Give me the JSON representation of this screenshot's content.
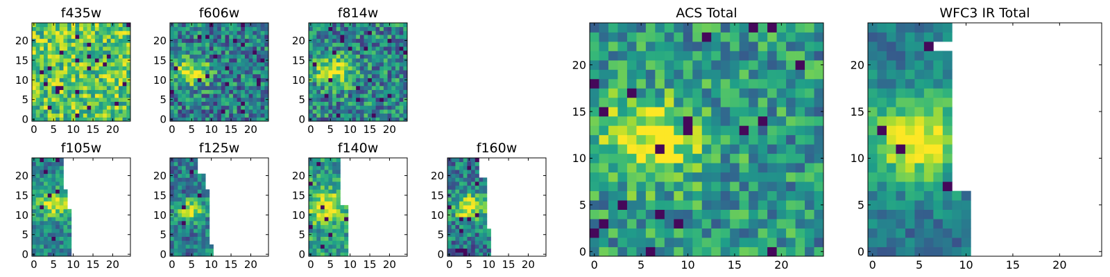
{
  "figure": {
    "background": "#ffffff",
    "colormap": "viridis",
    "colormap_stops": [
      "#440154",
      "#482878",
      "#3e4989",
      "#31688e",
      "#26828e",
      "#1f9e89",
      "#35b779",
      "#6ece58",
      "#b5de2b",
      "#fde725"
    ]
  },
  "chart_data": [
    {
      "type": "heatmap",
      "title": "f435w",
      "xlim": [
        -0.5,
        24.5
      ],
      "ylim": [
        -0.5,
        24.5
      ],
      "xticks": [
        0,
        5,
        10,
        15,
        20
      ],
      "yticks": [
        0,
        5,
        10,
        15,
        20
      ],
      "xticklabels": [
        "0",
        "5",
        "10",
        "15",
        "20"
      ],
      "yticklabels": [
        "0",
        "5",
        "10",
        "15",
        "20"
      ],
      "grid": false,
      "data_extent": [
        0,
        24
      ],
      "bright_spot": null,
      "mean_level": 0.72,
      "noise": 0.28,
      "seed": 11
    },
    {
      "type": "heatmap",
      "title": "f606w",
      "xlim": [
        -0.5,
        24.5
      ],
      "ylim": [
        -0.5,
        24.5
      ],
      "xticks": [
        0,
        5,
        10,
        15,
        20
      ],
      "yticks": [
        0,
        5,
        10,
        15,
        20
      ],
      "xticklabels": [
        "0",
        "5",
        "10",
        "15",
        "20"
      ],
      "yticklabels": [
        "0",
        "5",
        "10",
        "15",
        "20"
      ],
      "grid": false,
      "data_extent": [
        0,
        24
      ],
      "bright_spot": {
        "x": 5,
        "y": 12,
        "radius": 3.2,
        "peak": 0.98
      },
      "mean_level": 0.42,
      "noise": 0.3,
      "seed": 23
    },
    {
      "type": "heatmap",
      "title": "f814w",
      "xlim": [
        -0.5,
        24.5
      ],
      "ylim": [
        -0.5,
        24.5
      ],
      "xticks": [
        0,
        5,
        10,
        15,
        20
      ],
      "yticks": [
        0,
        5,
        10,
        15,
        20
      ],
      "xticklabels": [
        "0",
        "5",
        "10",
        "15",
        "20"
      ],
      "yticklabels": [
        "0",
        "5",
        "10",
        "15",
        "20"
      ],
      "grid": false,
      "data_extent": [
        0,
        24
      ],
      "bright_spot": {
        "x": 6,
        "y": 12,
        "radius": 3.2,
        "peak": 0.98
      },
      "mean_level": 0.45,
      "noise": 0.3,
      "seed": 37
    },
    {
      "type": "heatmap",
      "title": "ACS Total",
      "xlim": [
        -0.5,
        24.5
      ],
      "ylim": [
        -0.5,
        24.5
      ],
      "xticks": [
        0,
        5,
        10,
        15,
        20
      ],
      "yticks": [
        0,
        5,
        10,
        15,
        20
      ],
      "xticklabels": [
        "0",
        "5",
        "10",
        "15",
        "20"
      ],
      "yticklabels": [
        "0",
        "5",
        "10",
        "15",
        "20"
      ],
      "grid": false,
      "data_extent": [
        0,
        24
      ],
      "bright_spot": {
        "x": 6,
        "y": 12,
        "radius": 4.0,
        "peak": 0.98
      },
      "mean_level": 0.52,
      "noise": 0.26,
      "seed": 41
    },
    {
      "type": "heatmap",
      "title": "WFC3 IR Total",
      "xlim": [
        -0.5,
        24.5
      ],
      "ylim": [
        -0.5,
        24.5
      ],
      "xticks": [
        0,
        5,
        10,
        15,
        20
      ],
      "yticks": [
        0,
        5,
        10,
        15,
        20
      ],
      "xticklabels": [
        "0",
        "5",
        "10",
        "15",
        "20"
      ],
      "yticklabels": [
        "0",
        "5",
        "10",
        "15",
        "20"
      ],
      "grid": false,
      "data_extent": [
        0,
        24
      ],
      "data_columns_by_row": [
        {
          "rows": [
            0,
            6
          ],
          "max_col": 10
        },
        {
          "rows": [
            7,
            21
          ],
          "max_col": 8
        },
        {
          "rows": [
            22,
            22
          ],
          "max_col": 6
        },
        {
          "rows": [
            23,
            24
          ],
          "max_col": 8
        }
      ],
      "bright_spot": {
        "x": 5,
        "y": 12,
        "radius": 4.2,
        "peak": 0.98
      },
      "mean_level": 0.4,
      "noise": 0.16,
      "seed": 53
    },
    {
      "type": "heatmap",
      "title": "f105w",
      "xlim": [
        -0.5,
        24.5
      ],
      "ylim": [
        -0.5,
        24.5
      ],
      "xticks": [
        0,
        5,
        10,
        15,
        20
      ],
      "yticks": [
        0,
        5,
        10,
        15,
        20
      ],
      "xticklabels": [
        "0",
        "5",
        "10",
        "15",
        "20"
      ],
      "yticklabels": [
        "0",
        "5",
        "10",
        "15",
        "20"
      ],
      "grid": false,
      "data_extent": [
        0,
        24
      ],
      "data_columns_by_row": [
        {
          "rows": [
            0,
            11
          ],
          "max_col": 9
        },
        {
          "rows": [
            12,
            16
          ],
          "max_col": 8
        },
        {
          "rows": [
            17,
            24
          ],
          "max_col": 7
        }
      ],
      "bright_spot": {
        "x": 5,
        "y": 13,
        "radius": 3.0,
        "peak": 0.98
      },
      "mean_level": 0.45,
      "noise": 0.22,
      "seed": 61
    },
    {
      "type": "heatmap",
      "title": "f125w",
      "xlim": [
        -0.5,
        24.5
      ],
      "ylim": [
        -0.5,
        24.5
      ],
      "xticks": [
        0,
        5,
        10,
        15,
        20
      ],
      "yticks": [
        0,
        5,
        10,
        15,
        20
      ],
      "xticklabels": [
        "0",
        "5",
        "10",
        "15",
        "20"
      ],
      "yticklabels": [
        "0",
        "5",
        "10",
        "15",
        "20"
      ],
      "grid": false,
      "data_extent": [
        0,
        24
      ],
      "data_columns_by_row": [
        {
          "rows": [
            0,
            2
          ],
          "max_col": 10
        },
        {
          "rows": [
            3,
            16
          ],
          "max_col": 9
        },
        {
          "rows": [
            17,
            20
          ],
          "max_col": 8
        },
        {
          "rows": [
            21,
            24
          ],
          "max_col": 6
        }
      ],
      "bright_spot": {
        "x": 5,
        "y": 11,
        "radius": 2.6,
        "peak": 0.92
      },
      "mean_level": 0.4,
      "noise": 0.24,
      "seed": 73
    },
    {
      "type": "heatmap",
      "title": "f140w",
      "xlim": [
        -0.5,
        24.5
      ],
      "ylim": [
        -0.5,
        24.5
      ],
      "xticks": [
        0,
        5,
        10,
        15,
        20
      ],
      "yticks": [
        0,
        5,
        10,
        15,
        20
      ],
      "xticklabels": [
        "0",
        "5",
        "10",
        "15",
        "20"
      ],
      "yticklabels": [
        "0",
        "5",
        "10",
        "15",
        "20"
      ],
      "grid": false,
      "data_extent": [
        0,
        24
      ],
      "data_columns_by_row": [
        {
          "rows": [
            0,
            12
          ],
          "max_col": 9
        },
        {
          "rows": [
            13,
            24
          ],
          "max_col": 7
        }
      ],
      "bright_spot": {
        "x": 4,
        "y": 12,
        "radius": 3.4,
        "peak": 0.98
      },
      "mean_level": 0.55,
      "noise": 0.24,
      "seed": 89
    },
    {
      "type": "heatmap",
      "title": "f160w",
      "xlim": [
        -0.5,
        24.5
      ],
      "ylim": [
        -0.5,
        24.5
      ],
      "xticks": [
        0,
        5,
        10,
        15,
        20
      ],
      "yticks": [
        0,
        5,
        10,
        15,
        20
      ],
      "xticklabels": [
        "0",
        "5",
        "10",
        "15",
        "20"
      ],
      "yticklabels": [
        "0",
        "5",
        "10",
        "15",
        "20"
      ],
      "grid": false,
      "data_extent": [
        0,
        24
      ],
      "data_columns_by_row": [
        {
          "rows": [
            0,
            6
          ],
          "max_col": 10
        },
        {
          "rows": [
            7,
            19
          ],
          "max_col": 9
        },
        {
          "rows": [
            20,
            24
          ],
          "max_col": 7
        }
      ],
      "bright_spot": {
        "x": 5,
        "y": 12,
        "radius": 3.0,
        "peak": 0.98
      },
      "mean_level": 0.4,
      "noise": 0.26,
      "seed": 97
    }
  ]
}
